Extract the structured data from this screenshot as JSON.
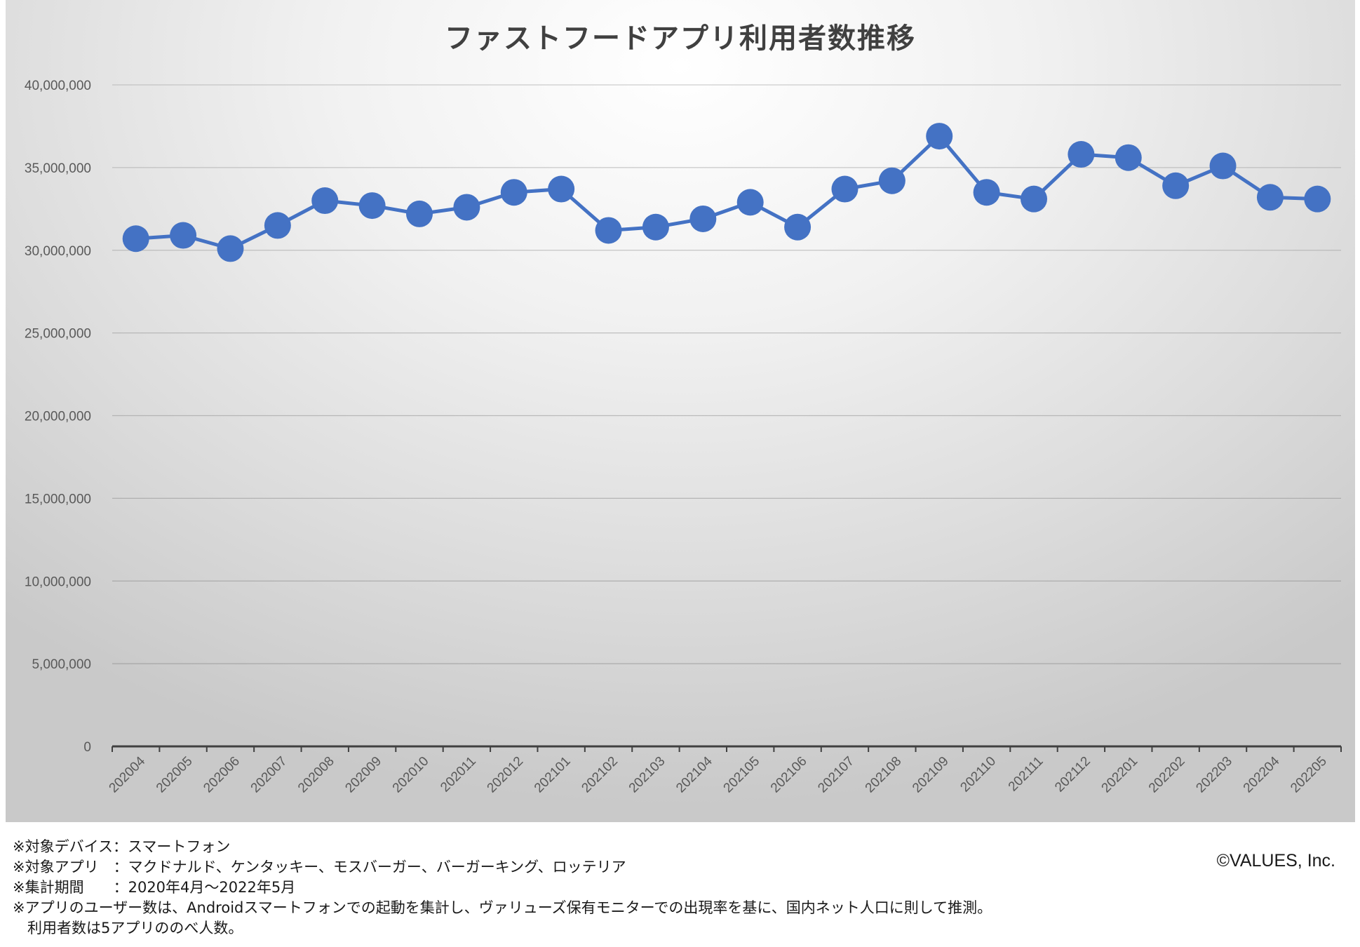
{
  "chart_data": {
    "type": "line",
    "title": "ファストフードアプリ利用者数推移",
    "categories": [
      "202004",
      "202005",
      "202006",
      "202007",
      "202008",
      "202009",
      "202010",
      "202011",
      "202012",
      "202101",
      "202102",
      "202103",
      "202104",
      "202105",
      "202106",
      "202107",
      "202108",
      "202109",
      "202110",
      "202111",
      "202112",
      "202201",
      "202202",
      "202203",
      "202204",
      "202205"
    ],
    "series": [
      {
        "values": [
          30700000,
          30900000,
          30100000,
          31500000,
          33000000,
          32700000,
          32200000,
          32600000,
          33500000,
          33700000,
          31200000,
          31400000,
          31900000,
          32900000,
          31400000,
          33700000,
          34200000,
          36900000,
          33500000,
          33100000,
          35800000,
          35600000,
          33900000,
          35100000,
          33200000,
          33100000
        ],
        "color": "#4472C4"
      }
    ],
    "yticks": [
      "0",
      "5,000,000",
      "10,000,000",
      "15,000,000",
      "20,000,000",
      "25,000,000",
      "30,000,000",
      "35,000,000",
      "40,000,000"
    ],
    "ylim": [
      0,
      40000000
    ],
    "grid": true,
    "legend": "none"
  },
  "notes": [
    "※対象デバイス：スマートフォン",
    "※対象アプリ　：マクドナルド、ケンタッキー、モスバーガー、バーガーキング、ロッテリア",
    "※集計期間　　：2020年4月～2022年5月",
    "※アプリのユーザー数は、Androidスマートフォンでの起動を集計し、ヴァリューズ保有モニターでの出現率を基に、国内ネット人口に則して推測。",
    "　利用者数は5アプリののべ人数。"
  ],
  "copyright": "©VALUES, Inc."
}
